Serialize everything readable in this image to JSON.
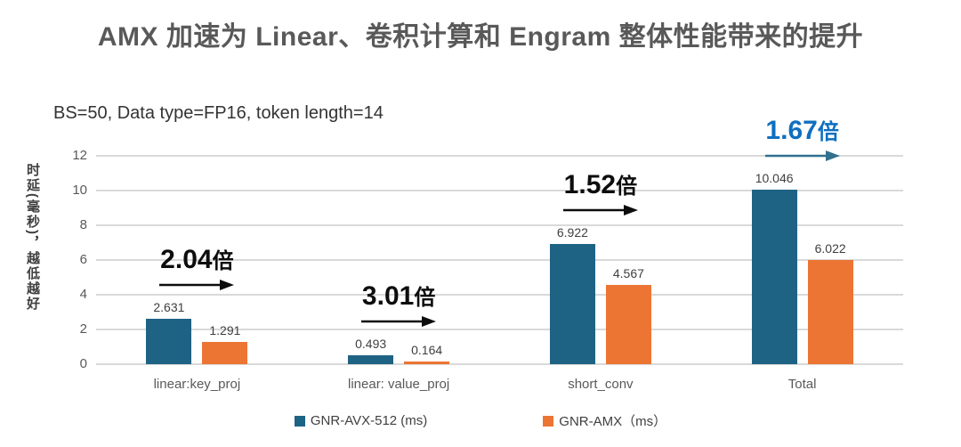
{
  "title": "AMX 加速为 Linear、卷积计算和 Engram 整体性能带来的提升",
  "subtitle": "BS=50, Data type=FP16, token length=14",
  "y_axis_label": "时延(毫秒)，越低越好",
  "chart_data": {
    "type": "bar",
    "title": "AMX 加速为 Linear、卷积计算和 Engram 整体性能带来的提升",
    "subtitle": "BS=50, Data type=FP16, token length=14",
    "ylabel": "时延(毫秒)，越低越好",
    "xlabel": "",
    "categories": [
      "linear:key_proj",
      "linear: value_proj",
      "short_conv",
      "Total"
    ],
    "series": [
      {
        "name": "GNR-AVX-512 (ms)",
        "color": "#1f6384",
        "values": [
          2.631,
          0.493,
          6.922,
          10.046
        ]
      },
      {
        "name": "GNR-AMX（ms）",
        "color": "#ec7533",
        "values": [
          1.291,
          0.164,
          4.567,
          6.022
        ]
      }
    ],
    "annotations": [
      {
        "category": "linear:key_proj",
        "label": "2.04倍",
        "text_color": "#0d0d0d",
        "arrow_color": "#0d0d0d"
      },
      {
        "category": "linear: value_proj",
        "label": "3.01倍",
        "text_color": "#0d0d0d",
        "arrow_color": "#0d0d0d"
      },
      {
        "category": "short_conv",
        "label": "1.52倍",
        "text_color": "#0d0d0d",
        "arrow_color": "#0d0d0d"
      },
      {
        "category": "Total",
        "label": "1.67倍",
        "text_color": "#0f6fc0",
        "arrow_color": "#31708f"
      }
    ],
    "y_ticks": [
      0,
      2,
      4,
      6,
      8,
      10,
      12
    ],
    "ylim": [
      0,
      12
    ],
    "grid": true,
    "value_labels_shown": true,
    "legend_position": "bottom"
  },
  "colors": {
    "grid": "#d9d9d9",
    "tick_text": "#595959",
    "title_text": "#595959",
    "background": "#ffffff"
  }
}
